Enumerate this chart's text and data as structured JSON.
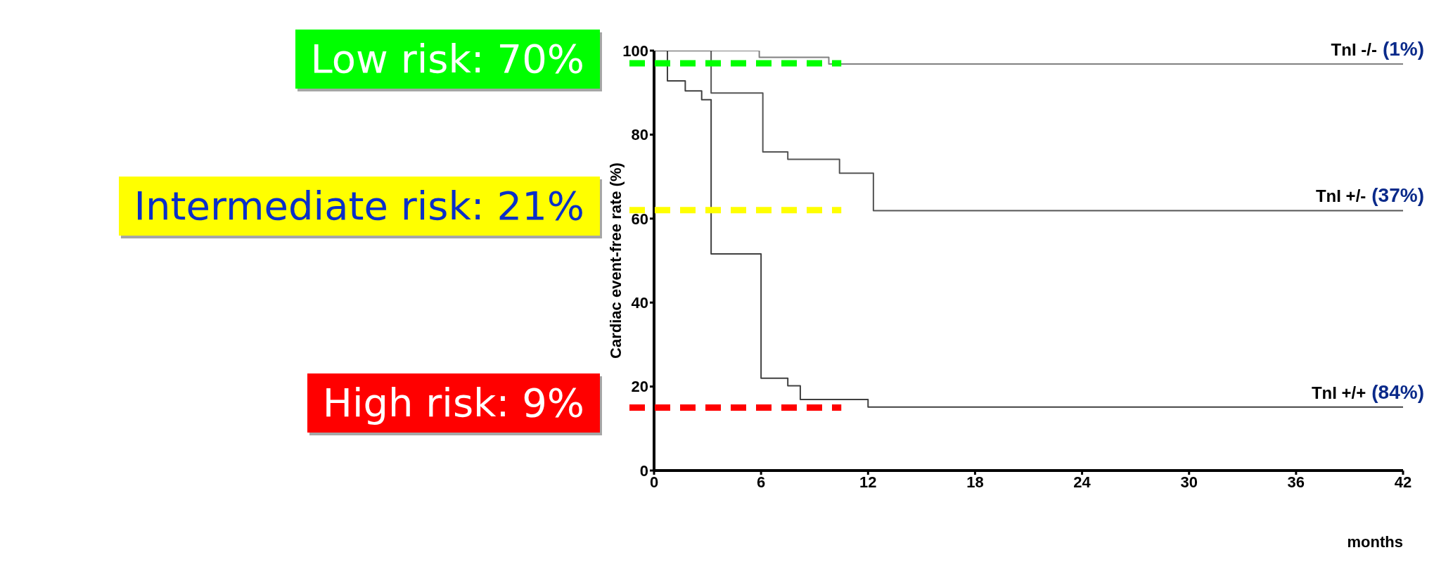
{
  "chart_data": {
    "type": "step",
    "ylabel": "Cardiac event-free rate (%)",
    "xlabel": "months",
    "xlim": [
      0,
      42
    ],
    "xticks": [
      0,
      6,
      12,
      18,
      24,
      30,
      36,
      42
    ],
    "ylim": [
      0,
      100
    ],
    "yticks": [
      0,
      20,
      40,
      60,
      80,
      100
    ],
    "marker": "none",
    "line_style": "solid",
    "series": [
      {
        "name": "TnI -/-",
        "color": "#808080",
        "x": [
          0,
          5.9,
          9.8,
          42
        ],
        "values": [
          100,
          98.4,
          96.8,
          96.8
        ]
      },
      {
        "name": "TnI +/-",
        "color": "#555555",
        "x": [
          0,
          3.2,
          6.1,
          7.5,
          10.4,
          12.3,
          42
        ],
        "values": [
          100,
          89.9,
          75.9,
          74.1,
          70.8,
          61.9,
          61.9
        ]
      },
      {
        "name": "TnI +/+",
        "color": "#404040",
        "x": [
          0,
          0.75,
          1.75,
          2.67,
          3.2,
          6.0,
          7.5,
          8.2,
          12.0,
          42
        ],
        "values": [
          100,
          92.8,
          90.4,
          88.3,
          51.6,
          22.0,
          20.2,
          16.9,
          15.1,
          15.1
        ]
      }
    ],
    "annotations": [
      "(1%)",
      "(37%)",
      "(84%)",
      "Low risk: 70%",
      "Intermediate risk: 21%",
      "High risk: 9%"
    ],
    "ref_lines": [
      {
        "axis": "y",
        "value": 97,
        "color": "#00ff00",
        "line_style": "dashed"
      },
      {
        "axis": "y",
        "value": 62,
        "color": "#ffff00",
        "line_style": "dashed"
      },
      {
        "axis": "y",
        "value": 15,
        "color": "#ff0000",
        "line_style": "dashed"
      }
    ]
  }
}
